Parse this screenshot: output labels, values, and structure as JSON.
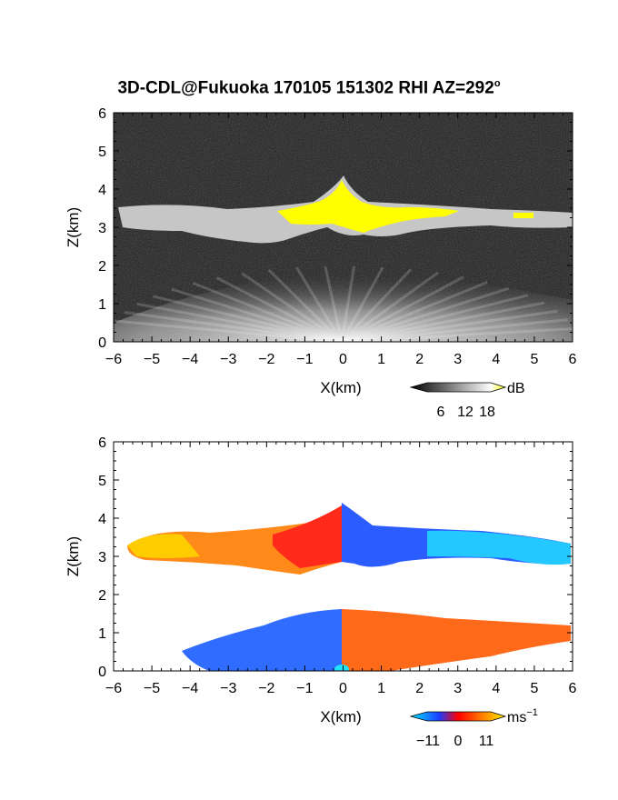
{
  "title": "3D-CDL@Fukuoka 170105 151302 RHI AZ=292",
  "title_degree": "o",
  "chart_data": [
    {
      "type": "heatmap",
      "panel": "reflectivity",
      "xlabel": "X(km)",
      "ylabel": "Z(km)",
      "xlim": [
        -6,
        6
      ],
      "ylim": [
        0,
        6
      ],
      "xticks": [
        "−6",
        "−5",
        "−4",
        "−3",
        "−2",
        "−1",
        "0",
        "1",
        "2",
        "3",
        "4",
        "5",
        "6"
      ],
      "yticks": [
        "0",
        "1",
        "2",
        "3",
        "4",
        "5",
        "6"
      ],
      "colorbar": {
        "ticks": [
          "6",
          "12",
          "18"
        ],
        "unit": "dB"
      },
      "features": {
        "background": "noise",
        "layer_base_km": 2.8,
        "layer_top_km": 3.6,
        "peak_top_km": 4.3,
        "peak_x_km": 0,
        "near_ground_fan_top_km": 1.0
      },
      "colors": {
        "noise": "#1a1a1a",
        "layer": "#d8d8d8",
        "strong": "#ffff00"
      }
    },
    {
      "type": "heatmap",
      "panel": "doppler_velocity",
      "xlabel": "X(km)",
      "ylabel": "Z(km)",
      "xlim": [
        -6,
        6
      ],
      "ylim": [
        0,
        6
      ],
      "xticks": [
        "−6",
        "−5",
        "−4",
        "−3",
        "−2",
        "−1",
        "0",
        "1",
        "2",
        "3",
        "4",
        "5",
        "6"
      ],
      "yticks": [
        "0",
        "1",
        "2",
        "3",
        "4",
        "5",
        "6"
      ],
      "colorbar": {
        "ticks": [
          "−11",
          "0",
          "11"
        ],
        "unit": "ms",
        "unit_exp": "−1"
      },
      "features": {
        "upper_layer_km": [
          2.8,
          3.7
        ],
        "upper_peak_km": 4.4,
        "lower_layer_km": [
          0,
          1.6
        ],
        "upper_left": "positive",
        "upper_right": "negative",
        "lower_left": "negative",
        "lower_right": "positive"
      },
      "colors": {
        "neg_strong": "#00e5ff",
        "neg": "#1c3cff",
        "zero": "#ff0000",
        "pos": "#ff6a00",
        "pos_strong": "#ffdd00"
      }
    }
  ]
}
